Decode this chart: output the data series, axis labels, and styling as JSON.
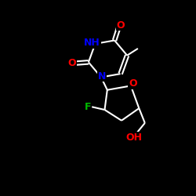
{
  "background_color": "#000000",
  "bond_color": "#ffffff",
  "atom_colors": {
    "O": "#ff0000",
    "N": "#0000ff",
    "F": "#00bb00",
    "C": "#ffffff",
    "H": "#ffffff"
  },
  "figsize": [
    2.5,
    2.5
  ],
  "dpi": 100
}
